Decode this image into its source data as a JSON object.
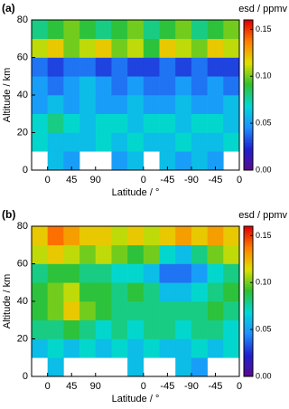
{
  "chart_data": [
    {
      "type": "heatmap",
      "panel_label": "(a)",
      "x_label": "Latitude / °",
      "y_label": "Altitude / km",
      "xlim": [
        -30,
        360
      ],
      "ylim": [
        0,
        80
      ],
      "xticks": [
        {
          "value": 0,
          "label": "0"
        },
        {
          "value": 45,
          "label": "45"
        },
        {
          "value": 90,
          "label": "90"
        },
        {
          "value": 180,
          "label": "0"
        },
        {
          "value": 225,
          "label": "-45"
        },
        {
          "value": 270,
          "label": "-90"
        },
        {
          "value": 315,
          "label": "-45"
        },
        {
          "value": 360,
          "label": "0"
        }
      ],
      "yticks": [
        0,
        20,
        40,
        60,
        80
      ],
      "xbins": [
        -30,
        0,
        30,
        60,
        90,
        120,
        150,
        180,
        210,
        240,
        270,
        300,
        330,
        360
      ],
      "ybins": [
        0,
        10,
        20,
        30,
        40,
        50,
        60,
        70,
        80
      ],
      "z": [
        [
          null,
          0.06,
          0.05,
          null,
          null,
          0.05,
          0.06,
          null,
          0.06,
          0.05,
          0.06,
          0.05,
          null
        ],
        [
          0.07,
          0.06,
          0.06,
          0.06,
          0.07,
          0.06,
          0.07,
          0.06,
          0.06,
          0.07,
          0.06,
          0.06,
          0.07
        ],
        [
          0.07,
          0.08,
          0.07,
          0.06,
          0.07,
          0.07,
          0.06,
          0.07,
          0.07,
          0.06,
          0.07,
          0.07,
          0.06
        ],
        [
          0.05,
          0.06,
          0.05,
          0.06,
          0.05,
          0.05,
          0.06,
          0.05,
          0.05,
          0.06,
          0.05,
          0.05,
          0.06
        ],
        [
          0.05,
          0.04,
          0.05,
          0.06,
          0.05,
          0.04,
          0.05,
          0.04,
          0.04,
          0.05,
          0.04,
          0.05,
          0.04
        ],
        [
          0.04,
          0.03,
          0.04,
          0.04,
          0.03,
          0.04,
          0.03,
          0.03,
          0.04,
          0.03,
          0.04,
          0.03,
          0.03
        ],
        [
          0.11,
          0.12,
          0.1,
          0.11,
          0.12,
          0.1,
          0.11,
          0.09,
          0.12,
          0.11,
          0.1,
          0.12,
          0.11
        ],
        [
          0.08,
          0.09,
          0.1,
          0.09,
          0.08,
          0.09,
          0.1,
          0.08,
          0.09,
          0.1,
          0.08,
          0.09,
          0.1
        ]
      ],
      "colormap": [
        "#5a0a8c",
        "#2020d0",
        "#1e90ff",
        "#00d8d8",
        "#30c030",
        "#e0e000",
        "#ff8000",
        "#e00000"
      ],
      "colorbar": {
        "label": "esd / ppmv",
        "lim": [
          0,
          0.16
        ],
        "ticks": [
          {
            "value": 0,
            "label": "0.00"
          },
          {
            "value": 0.05,
            "label": "0.05"
          },
          {
            "value": 0.1,
            "label": "0.10"
          },
          {
            "value": 0.15,
            "label": "0.15"
          }
        ]
      }
    },
    {
      "type": "heatmap",
      "panel_label": "(b)",
      "x_label": "Latitude / °",
      "y_label": "Altitude / km",
      "xlim": [
        -30,
        360
      ],
      "ylim": [
        0,
        80
      ],
      "xticks": [
        {
          "value": 0,
          "label": "0"
        },
        {
          "value": 45,
          "label": "45"
        },
        {
          "value": 90,
          "label": "90"
        },
        {
          "value": 180,
          "label": "0"
        },
        {
          "value": 225,
          "label": "-45"
        },
        {
          "value": 270,
          "label": "-90"
        },
        {
          "value": 315,
          "label": "-45"
        },
        {
          "value": 360,
          "label": "0"
        }
      ],
      "yticks": [
        0,
        20,
        40,
        60,
        80
      ],
      "xbins": [
        -30,
        0,
        30,
        60,
        90,
        120,
        150,
        180,
        210,
        240,
        270,
        300,
        330,
        360
      ],
      "ybins": [
        0,
        10,
        20,
        30,
        40,
        50,
        60,
        70,
        80
      ],
      "z": [
        [
          null,
          0.06,
          null,
          null,
          null,
          null,
          0.06,
          null,
          null,
          0.06,
          0.05,
          null,
          null
        ],
        [
          0.06,
          0.07,
          0.06,
          0.07,
          0.06,
          0.07,
          0.06,
          0.07,
          0.06,
          0.06,
          0.07,
          0.06,
          0.07
        ],
        [
          0.08,
          0.08,
          0.09,
          0.08,
          0.07,
          0.08,
          0.07,
          0.08,
          0.08,
          0.07,
          0.08,
          0.08,
          0.07
        ],
        [
          0.09,
          0.1,
          0.12,
          0.1,
          0.09,
          0.08,
          0.08,
          0.08,
          0.08,
          0.08,
          0.08,
          0.09,
          0.08
        ],
        [
          0.09,
          0.1,
          0.11,
          0.09,
          0.09,
          0.08,
          0.09,
          0.08,
          0.06,
          0.06,
          0.07,
          0.08,
          0.09
        ],
        [
          0.08,
          0.09,
          0.09,
          0.08,
          0.08,
          0.07,
          0.07,
          0.06,
          0.04,
          0.04,
          0.05,
          0.07,
          0.08
        ],
        [
          0.11,
          0.12,
          0.11,
          0.1,
          0.11,
          0.1,
          0.09,
          0.1,
          0.07,
          0.06,
          0.08,
          0.1,
          0.11
        ],
        [
          0.12,
          0.14,
          0.13,
          0.12,
          0.12,
          0.11,
          0.12,
          0.11,
          0.12,
          0.13,
          0.12,
          0.13,
          0.12
        ]
      ],
      "colormap": [
        "#5a0a8c",
        "#2020d0",
        "#1e90ff",
        "#00d8d8",
        "#30c030",
        "#e0e000",
        "#ff8000",
        "#e00000"
      ],
      "colorbar": {
        "label": "esd / ppmv",
        "lim": [
          0,
          0.16
        ],
        "ticks": [
          {
            "value": 0,
            "label": "0.00"
          },
          {
            "value": 0.05,
            "label": "0.05"
          },
          {
            "value": 0.1,
            "label": "0.10"
          },
          {
            "value": 0.15,
            "label": "0.15"
          }
        ]
      }
    }
  ]
}
